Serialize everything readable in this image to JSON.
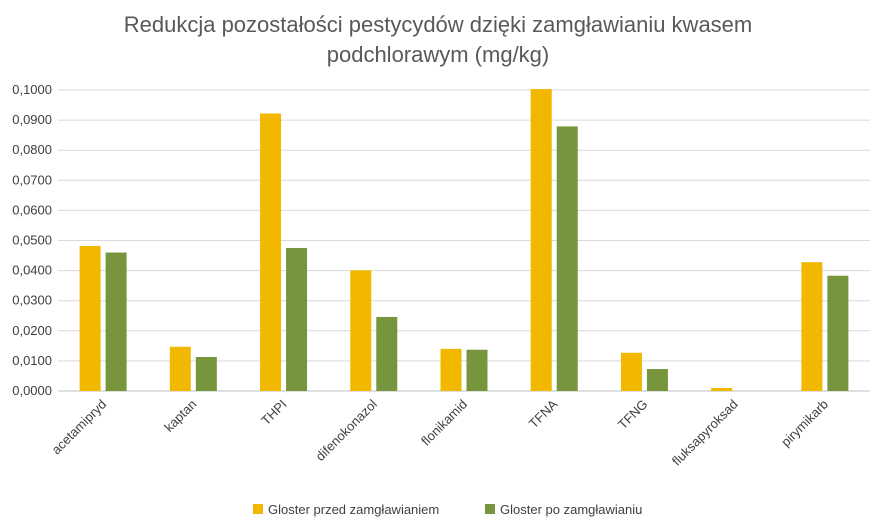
{
  "chart_data": {
    "type": "bar",
    "title_lines": [
      "Redukcja pozostałości pestycydów dzięki zamgławianiu kwasem",
      "podchlorawym (mg/kg)"
    ],
    "categories": [
      "acetamipryd",
      "kaptan",
      "THPI",
      "difenokonazol",
      "flonikamid",
      "TFNA",
      "TFNG",
      "fluksapyroksad",
      "pirymikarb"
    ],
    "series": [
      {
        "name": "Gloster przed zamgławianiem",
        "color": "#F2B800",
        "values": [
          0.0482,
          0.0147,
          0.0922,
          0.0401,
          0.014,
          0.1003,
          0.0127,
          0.001,
          0.0428
        ]
      },
      {
        "name": "Gloster po zamgławianiu",
        "color": "#77953D",
        "values": [
          0.046,
          0.0113,
          0.0475,
          0.0246,
          0.0137,
          0.0879,
          0.0073,
          0.0,
          0.0383
        ]
      }
    ],
    "ylim": [
      0,
      0.1
    ],
    "yticks": [
      "0,0000",
      "0,0100",
      "0,0200",
      "0,0300",
      "0,0400",
      "0,0500",
      "0,0600",
      "0,0700",
      "0,0800",
      "0,0900",
      "0,1000"
    ],
    "grid": true,
    "legend_position": "bottom"
  }
}
